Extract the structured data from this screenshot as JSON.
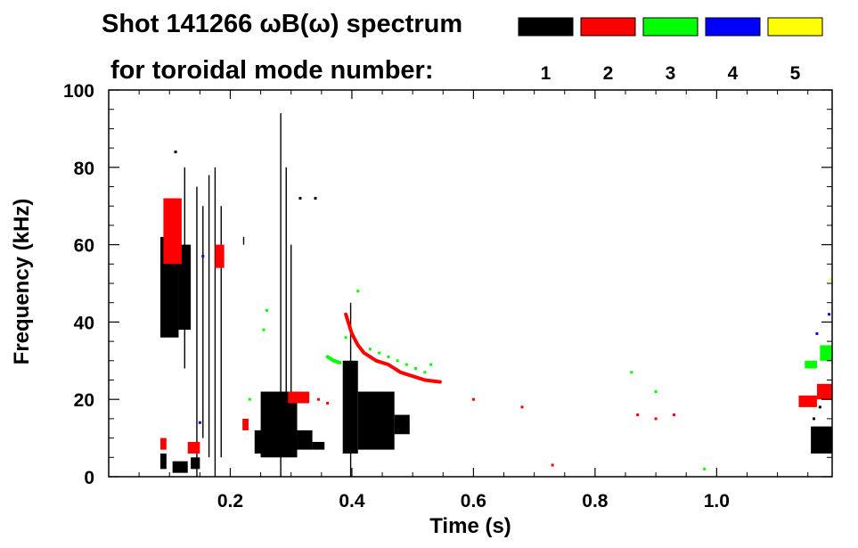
{
  "chart_data": {
    "type": "scatter",
    "title_line1": "Shot 141266 ωB(ω) spectrum",
    "title_line2": "for toroidal mode number:",
    "xlabel": "Time (s)",
    "ylabel": "Frequency (kHz)",
    "xlim": [
      0.0,
      1.19
    ],
    "ylim": [
      0,
      100
    ],
    "x_ticks": [
      0.2,
      0.4,
      0.6,
      0.8,
      1.0
    ],
    "x_tick_labels": [
      "0.2",
      "0.4",
      "0.6",
      "0.8",
      "1.0"
    ],
    "y_ticks": [
      0,
      20,
      40,
      60,
      80,
      100
    ],
    "y_tick_labels": [
      "0",
      "20",
      "40",
      "60",
      "80",
      "100"
    ],
    "legend_position": "top",
    "series": [
      {
        "name": "1",
        "color": "#000000",
        "regions": [
          {
            "t": [
              0.085,
              0.115
            ],
            "f": [
              36,
              62
            ]
          },
          {
            "t": [
              0.115,
              0.135
            ],
            "f": [
              38,
              60
            ]
          },
          {
            "t": [
              0.085,
              0.095
            ],
            "f": [
              2,
              6
            ]
          },
          {
            "t": [
              0.105,
              0.13
            ],
            "f": [
              1,
              4
            ]
          },
          {
            "t": [
              0.135,
              0.15
            ],
            "f": [
              2,
              5
            ]
          },
          {
            "t": [
              0.24,
              0.255
            ],
            "f": [
              6,
              12
            ]
          },
          {
            "t": [
              0.25,
              0.31
            ],
            "f": [
              5,
              22
            ]
          },
          {
            "t": [
              0.31,
              0.335
            ],
            "f": [
              7,
              12
            ]
          },
          {
            "t": [
              0.335,
              0.355
            ],
            "f": [
              7,
              9
            ]
          },
          {
            "t": [
              0.385,
              0.41
            ],
            "f": [
              6,
              30
            ]
          },
          {
            "t": [
              0.41,
              0.47
            ],
            "f": [
              7,
              22
            ]
          },
          {
            "t": [
              0.47,
              0.495
            ],
            "f": [
              11,
              16
            ]
          },
          {
            "t": [
              1.155,
              1.19
            ],
            "f": [
              6,
              13
            ]
          }
        ],
        "streaks": [
          {
            "t": 0.125,
            "f": [
              28,
              80
            ]
          },
          {
            "t": 0.145,
            "f": [
              0,
              75
            ]
          },
          {
            "t": 0.155,
            "f": [
              10,
              70
            ]
          },
          {
            "t": 0.165,
            "f": [
              5,
              78
            ]
          },
          {
            "t": 0.175,
            "f": [
              0,
              80
            ]
          },
          {
            "t": 0.185,
            "f": [
              5,
              70
            ]
          },
          {
            "t": 0.283,
            "f": [
              0,
              94
            ]
          },
          {
            "t": 0.292,
            "f": [
              15,
              80
            ]
          },
          {
            "t": 0.3,
            "f": [
              20,
              60
            ]
          },
          {
            "t": 0.398,
            "f": [
              0,
              45
            ]
          },
          {
            "t": 0.222,
            "f": [
              60,
              62
            ]
          }
        ],
        "points": [
          {
            "t": 0.34,
            "f": 72
          },
          {
            "t": 0.315,
            "f": 72
          },
          {
            "t": 0.11,
            "f": 84
          },
          {
            "t": 1.17,
            "f": 18
          },
          {
            "t": 1.16,
            "f": 15
          }
        ]
      },
      {
        "name": "2",
        "color": "#ff0000",
        "regions": [
          {
            "t": [
              0.09,
              0.12
            ],
            "f": [
              55,
              72
            ]
          },
          {
            "t": [
              0.085,
              0.095
            ],
            "f": [
              7,
              10
            ]
          },
          {
            "t": [
              0.13,
              0.15
            ],
            "f": [
              6,
              9
            ]
          },
          {
            "t": [
              0.175,
              0.19
            ],
            "f": [
              54,
              60
            ]
          },
          {
            "t": [
              0.22,
              0.23
            ],
            "f": [
              12,
              15
            ]
          },
          {
            "t": [
              0.295,
              0.33
            ],
            "f": [
              19,
              22
            ]
          },
          {
            "t": [
              1.135,
              1.165
            ],
            "f": [
              18,
              21
            ]
          },
          {
            "t": [
              1.165,
              1.19
            ],
            "f": [
              20,
              24
            ]
          }
        ],
        "curve": [
          {
            "t": 0.39,
            "f": 42
          },
          {
            "t": 0.4,
            "f": 37
          },
          {
            "t": 0.41,
            "f": 34
          },
          {
            "t": 0.42,
            "f": 32
          },
          {
            "t": 0.44,
            "f": 30
          },
          {
            "t": 0.46,
            "f": 29
          },
          {
            "t": 0.48,
            "f": 27
          },
          {
            "t": 0.5,
            "f": 26
          },
          {
            "t": 0.52,
            "f": 25
          },
          {
            "t": 0.545,
            "f": 24.5
          }
        ],
        "points": [
          {
            "t": 0.6,
            "f": 20
          },
          {
            "t": 0.68,
            "f": 18
          },
          {
            "t": 0.73,
            "f": 3
          },
          {
            "t": 0.87,
            "f": 16
          },
          {
            "t": 0.9,
            "f": 15
          },
          {
            "t": 0.93,
            "f": 16
          },
          {
            "t": 0.345,
            "f": 20
          },
          {
            "t": 0.36,
            "f": 19
          }
        ]
      },
      {
        "name": "3",
        "color": "#00ff00",
        "regions": [
          {
            "t": [
              1.145,
              1.165
            ],
            "f": [
              28,
              30
            ]
          },
          {
            "t": [
              1.17,
              1.19
            ],
            "f": [
              30,
              34
            ]
          }
        ],
        "curve": [
          {
            "t": 0.36,
            "f": 31
          },
          {
            "t": 0.37,
            "f": 30
          },
          {
            "t": 0.38,
            "f": 29.5
          }
        ],
        "points": [
          {
            "t": 0.43,
            "f": 33
          },
          {
            "t": 0.445,
            "f": 32
          },
          {
            "t": 0.46,
            "f": 31
          },
          {
            "t": 0.475,
            "f": 30
          },
          {
            "t": 0.49,
            "f": 29
          },
          {
            "t": 0.505,
            "f": 28
          },
          {
            "t": 0.52,
            "f": 27
          },
          {
            "t": 0.53,
            "f": 29
          },
          {
            "t": 0.86,
            "f": 27
          },
          {
            "t": 0.9,
            "f": 22
          },
          {
            "t": 0.98,
            "f": 2
          },
          {
            "t": 0.232,
            "f": 20
          },
          {
            "t": 0.255,
            "f": 38
          },
          {
            "t": 0.26,
            "f": 43
          },
          {
            "t": 0.41,
            "f": 48
          },
          {
            "t": 0.39,
            "f": 36
          }
        ]
      },
      {
        "name": "4",
        "color": "#0000ff",
        "points": [
          {
            "t": 0.15,
            "f": 14
          },
          {
            "t": 0.155,
            "f": 57
          },
          {
            "t": 1.185,
            "f": 42
          },
          {
            "t": 1.165,
            "f": 37
          }
        ]
      },
      {
        "name": "5",
        "color": "#ffff00",
        "points": [
          {
            "t": 1.188,
            "f": 51
          }
        ]
      }
    ]
  }
}
